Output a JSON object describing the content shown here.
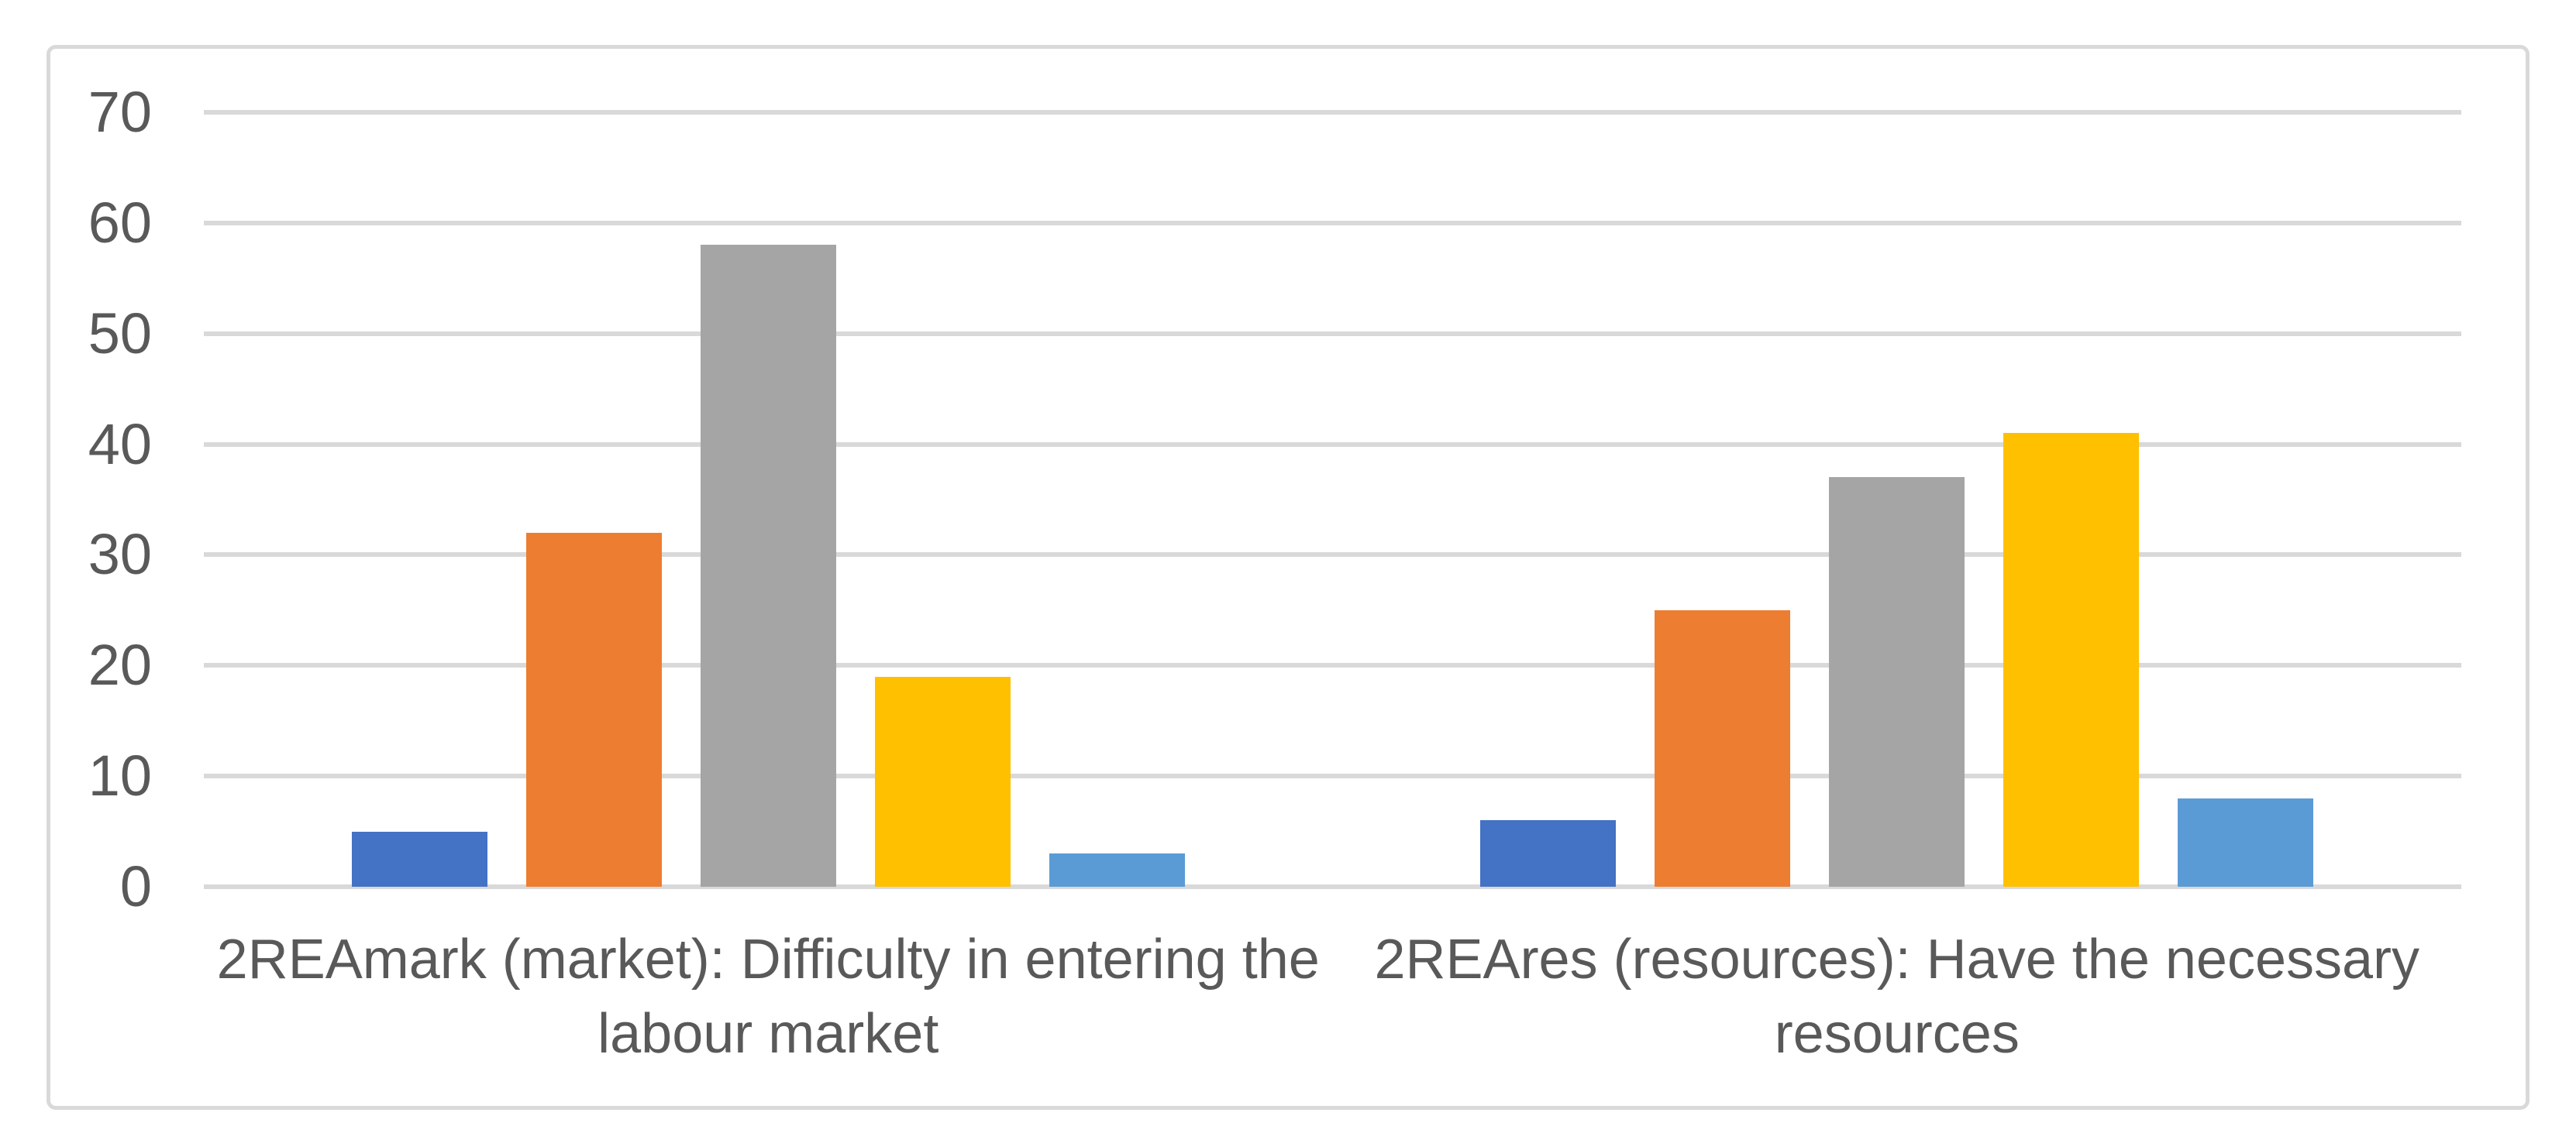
{
  "chart_data": {
    "type": "bar",
    "title": "",
    "xlabel": "",
    "ylabel": "",
    "categories": [
      {
        "label": "2REAmark (market): Difficulty in entering the labour market",
        "lines": [
          "2REAmark (market): Difficulty in entering the",
          "labour market"
        ]
      },
      {
        "label": "2REAres (resources): Have the necessary resources",
        "lines": [
          "2REAres (resources): Have the necessary",
          "resources"
        ]
      }
    ],
    "series": [
      {
        "color": "#4472C4",
        "values": [
          5,
          6
        ]
      },
      {
        "color": "#ED7D31",
        "values": [
          32,
          25
        ]
      },
      {
        "color": "#A5A5A5",
        "values": [
          58,
          37
        ]
      },
      {
        "color": "#FFC000",
        "values": [
          19,
          41
        ]
      },
      {
        "color": "#5B9BD5",
        "values": [
          3,
          8
        ]
      }
    ],
    "ylim": [
      0,
      70
    ],
    "yticks": [
      0,
      10,
      20,
      30,
      40,
      50,
      60,
      70
    ],
    "grid": true,
    "legend": false,
    "legend_position": "none",
    "colors": {
      "gridline": "#D9D9D9",
      "axis_line": "#D9D9D9",
      "tick_text": "#595959",
      "category_text": "#595959",
      "frame_border": "#D9D9D9",
      "background": "#FFFFFF"
    }
  }
}
